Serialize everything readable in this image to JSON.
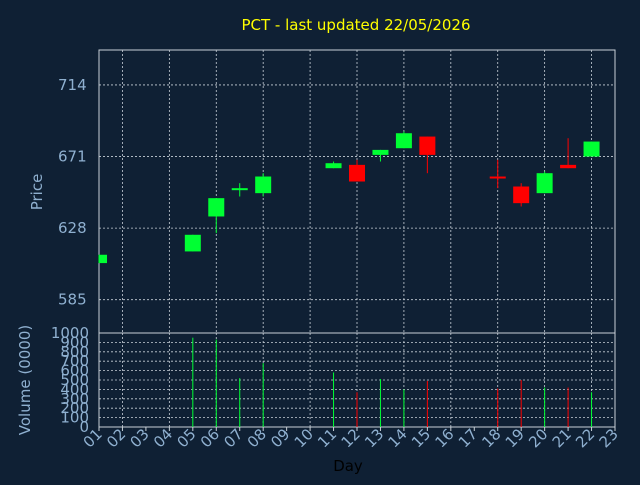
{
  "colors": {
    "background": "#0f2034",
    "title": "#ffff00",
    "axis_text": "#8fb0d0",
    "grid": "#c8d0d8",
    "up": "#00ff33",
    "down": "#ff0000"
  },
  "chart_data": [
    {
      "type": "candlestick",
      "title": "PCT - last updated 22/05/2026",
      "ylabel": "Price",
      "ylim": [
        565,
        735
      ],
      "y_ticks": [
        "585",
        "628",
        "671",
        "714"
      ],
      "x_ticks": [
        "01",
        "02",
        "03",
        "04",
        "05",
        "06",
        "07",
        "08",
        "09",
        "10",
        "11",
        "12",
        "13",
        "14",
        "15",
        "16",
        "17",
        "18",
        "19",
        "20",
        "21",
        "22",
        "23"
      ],
      "grid": true,
      "candles": [
        {
          "day": "01",
          "open": 607,
          "close": 612,
          "high": 612,
          "low": 607
        },
        {
          "day": "05",
          "open": 614,
          "close": 624,
          "high": 624,
          "low": 614
        },
        {
          "day": "06",
          "open": 635,
          "close": 646,
          "high": 646,
          "low": 625
        },
        {
          "day": "07",
          "open": 651,
          "close": 652,
          "high": 655,
          "low": 647
        },
        {
          "day": "08",
          "open": 649,
          "close": 659,
          "high": 661,
          "low": 647
        },
        {
          "day": "11",
          "open": 664,
          "close": 667,
          "high": 668,
          "low": 664
        },
        {
          "day": "12",
          "open": 666,
          "close": 656,
          "high": 669,
          "low": 656
        },
        {
          "day": "13",
          "open": 672,
          "close": 675,
          "high": 675,
          "low": 668
        },
        {
          "day": "14",
          "open": 676,
          "close": 685,
          "high": 686,
          "low": 676
        },
        {
          "day": "15",
          "open": 683,
          "close": 672,
          "high": 683,
          "low": 661
        },
        {
          "day": "18",
          "open": 659,
          "close": 658,
          "high": 669,
          "low": 652
        },
        {
          "day": "19",
          "open": 653,
          "close": 643,
          "high": 655,
          "low": 641
        },
        {
          "day": "20",
          "open": 649,
          "close": 661,
          "high": 662,
          "low": 649
        },
        {
          "day": "21",
          "open": 666,
          "close": 664,
          "high": 682,
          "low": 664
        },
        {
          "day": "22",
          "open": 671,
          "close": 680,
          "high": 680,
          "low": 671
        }
      ]
    },
    {
      "type": "bar",
      "ylabel": "Volume (0000)",
      "xlabel": "Day",
      "ylim": [
        0,
        1000
      ],
      "y_ticks": [
        "0",
        "100",
        "200",
        "300",
        "400",
        "500",
        "600",
        "700",
        "800",
        "900",
        "1000"
      ],
      "x_ticks": [
        "01",
        "02",
        "03",
        "04",
        "05",
        "06",
        "07",
        "08",
        "09",
        "10",
        "11",
        "12",
        "13",
        "14",
        "15",
        "16",
        "17",
        "18",
        "19",
        "20",
        "21",
        "22",
        "23"
      ],
      "grid": true,
      "bars": [
        {
          "day": "05",
          "value": 950,
          "direction": "up"
        },
        {
          "day": "06",
          "value": 930,
          "direction": "up"
        },
        {
          "day": "07",
          "value": 520,
          "direction": "up"
        },
        {
          "day": "08",
          "value": 680,
          "direction": "up"
        },
        {
          "day": "11",
          "value": 580,
          "direction": "up"
        },
        {
          "day": "12",
          "value": 370,
          "direction": "down"
        },
        {
          "day": "13",
          "value": 510,
          "direction": "up"
        },
        {
          "day": "14",
          "value": 400,
          "direction": "up"
        },
        {
          "day": "15",
          "value": 490,
          "direction": "down"
        },
        {
          "day": "18",
          "value": 410,
          "direction": "down"
        },
        {
          "day": "19",
          "value": 500,
          "direction": "down"
        },
        {
          "day": "20",
          "value": 420,
          "direction": "up"
        },
        {
          "day": "21",
          "value": 420,
          "direction": "down"
        },
        {
          "day": "22",
          "value": 370,
          "direction": "up"
        }
      ]
    }
  ]
}
